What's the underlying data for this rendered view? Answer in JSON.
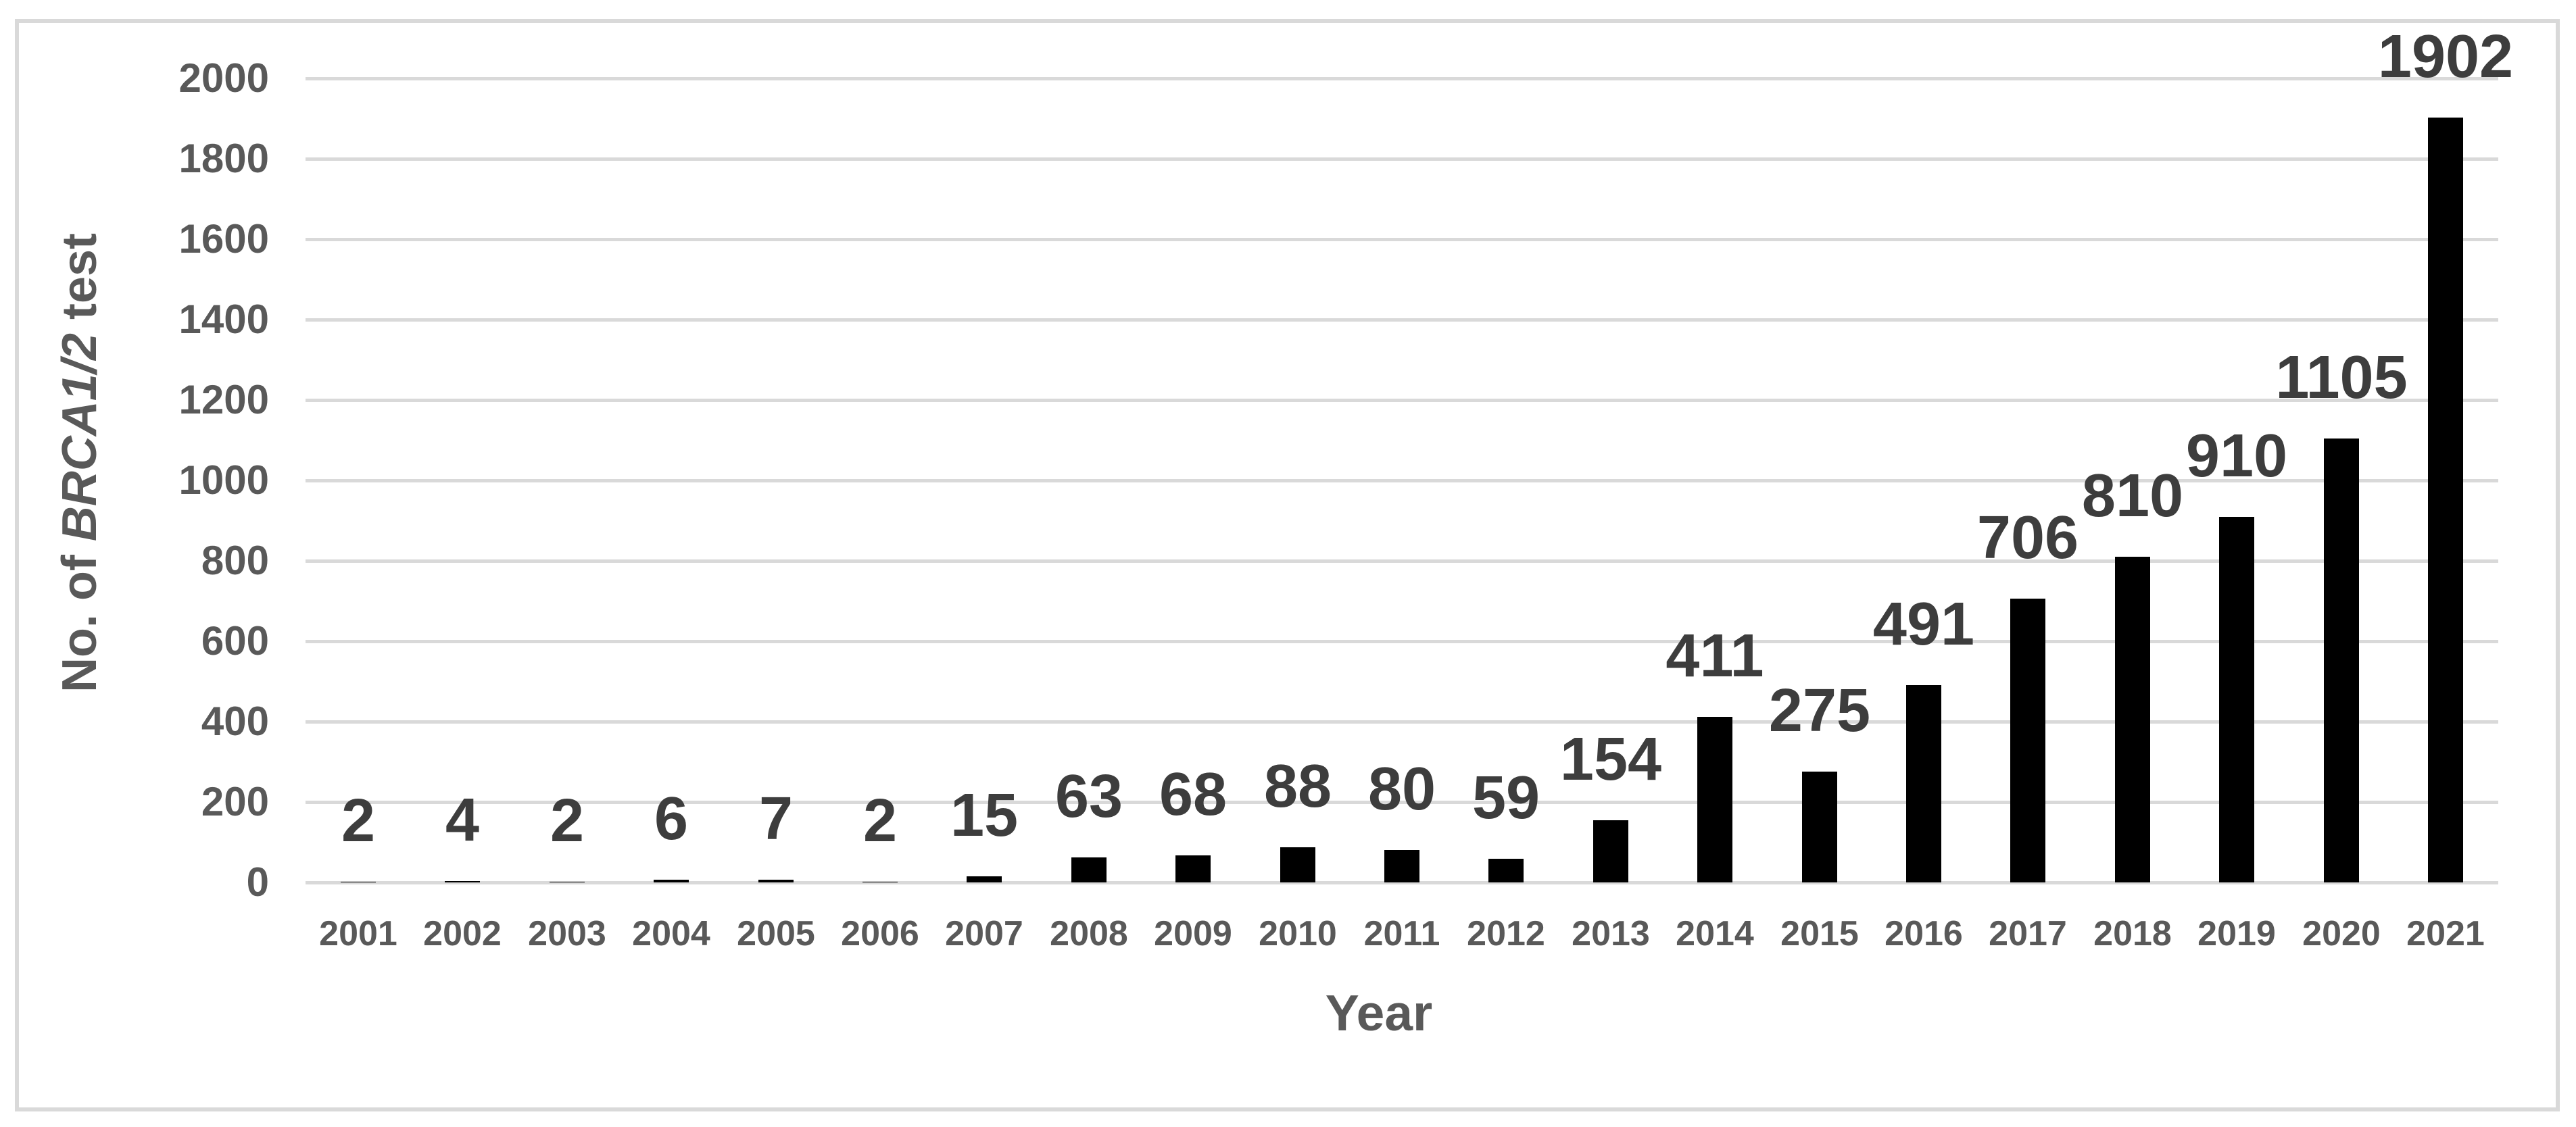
{
  "chart_data": {
    "type": "bar",
    "title": "",
    "xlabel": "Year",
    "ylabel": "No. of BRCA1/2 test",
    "ylabel_parts": {
      "prefix": "No. of ",
      "italic": "BRCA1/2",
      "suffix": " test"
    },
    "categories": [
      "2001",
      "2002",
      "2003",
      "2004",
      "2005",
      "2006",
      "2007",
      "2008",
      "2009",
      "2010",
      "2011",
      "2012",
      "2013",
      "2014",
      "2015",
      "2016",
      "2017",
      "2018",
      "2019",
      "2020",
      "2021"
    ],
    "values": [
      2,
      4,
      2,
      6,
      7,
      2,
      15,
      63,
      68,
      88,
      80,
      59,
      154,
      411,
      275,
      491,
      706,
      810,
      910,
      1105,
      1902
    ],
    "ylim": [
      0,
      2000
    ],
    "yticks": [
      0,
      200,
      400,
      600,
      800,
      1000,
      1200,
      1400,
      1600,
      1800,
      2000
    ],
    "grid": true,
    "legend_position": "none",
    "colors": {
      "bar": "#000000",
      "data_label": "#3d3d3d",
      "axis_text": "#595959",
      "gridline": "#d9d9d9",
      "border": "#d9d9d9",
      "background": "#ffffff"
    }
  }
}
